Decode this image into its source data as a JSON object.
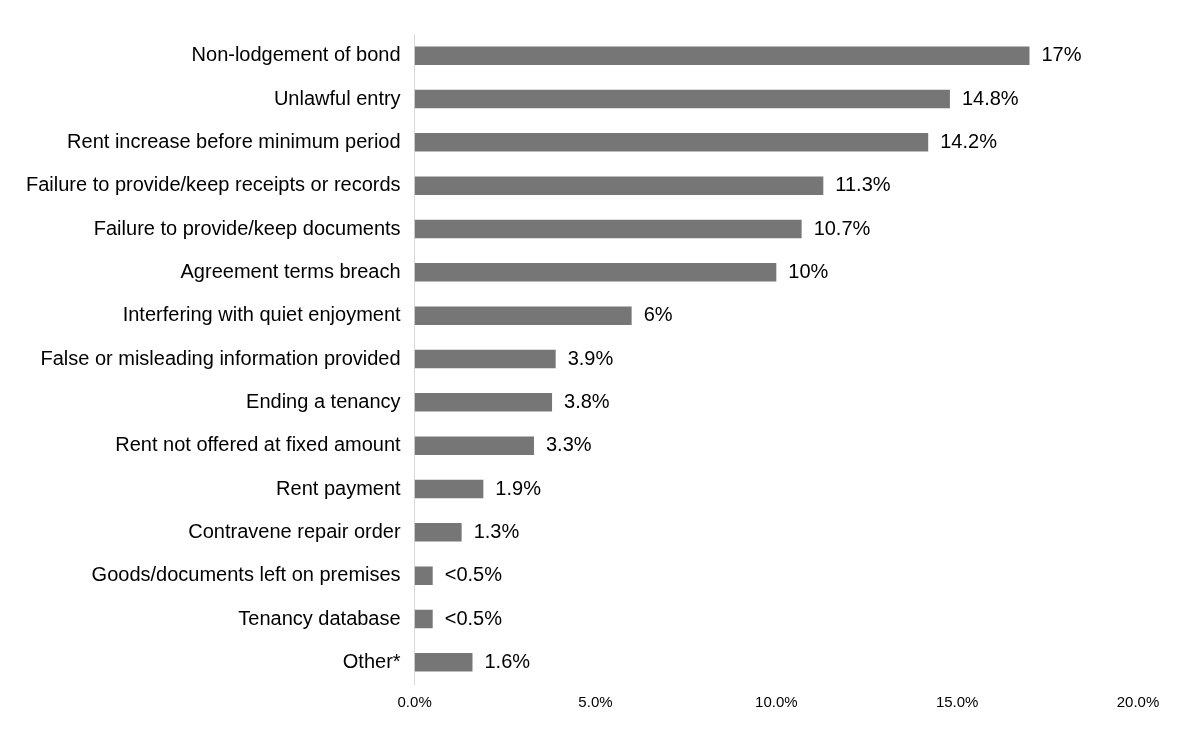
{
  "chart_data": {
    "type": "bar",
    "orientation": "horizontal",
    "categories": [
      "Non-lodgement of bond",
      "Unlawful entry",
      "Rent increase before minimum period",
      "Failure to provide/keep receipts or records",
      "Failure to provide/keep documents",
      "Agreement terms breach",
      "Interfering with quiet enjoyment",
      "False or misleading information provided",
      "Ending a tenancy",
      "Rent not offered at fixed amount",
      "Rent payment",
      "Contravene repair order",
      "Goods/documents left on premises",
      "Tenancy database",
      "Other*"
    ],
    "values": [
      17,
      14.8,
      14.2,
      11.3,
      10.7,
      10,
      6,
      3.9,
      3.8,
      3.3,
      1.9,
      1.3,
      0.5,
      0.5,
      1.6
    ],
    "value_labels": [
      "17%",
      "14.8%",
      "14.2%",
      "11.3%",
      "10.7%",
      "10%",
      "6%",
      "3.9%",
      "3.8%",
      "3.3%",
      "1.9%",
      "1.3%",
      "<0.5%",
      "<0.5%",
      "1.6%"
    ],
    "color": "#767676",
    "xlim": [
      0,
      20
    ],
    "xticks": [
      {
        "value": 0,
        "label": "0.0%"
      },
      {
        "value": 5,
        "label": "5.0%"
      },
      {
        "value": 10,
        "label": "10.0%"
      },
      {
        "value": 15,
        "label": "15.0%"
      },
      {
        "value": 20,
        "label": "20.0%"
      }
    ],
    "grid": false,
    "legend": false
  }
}
